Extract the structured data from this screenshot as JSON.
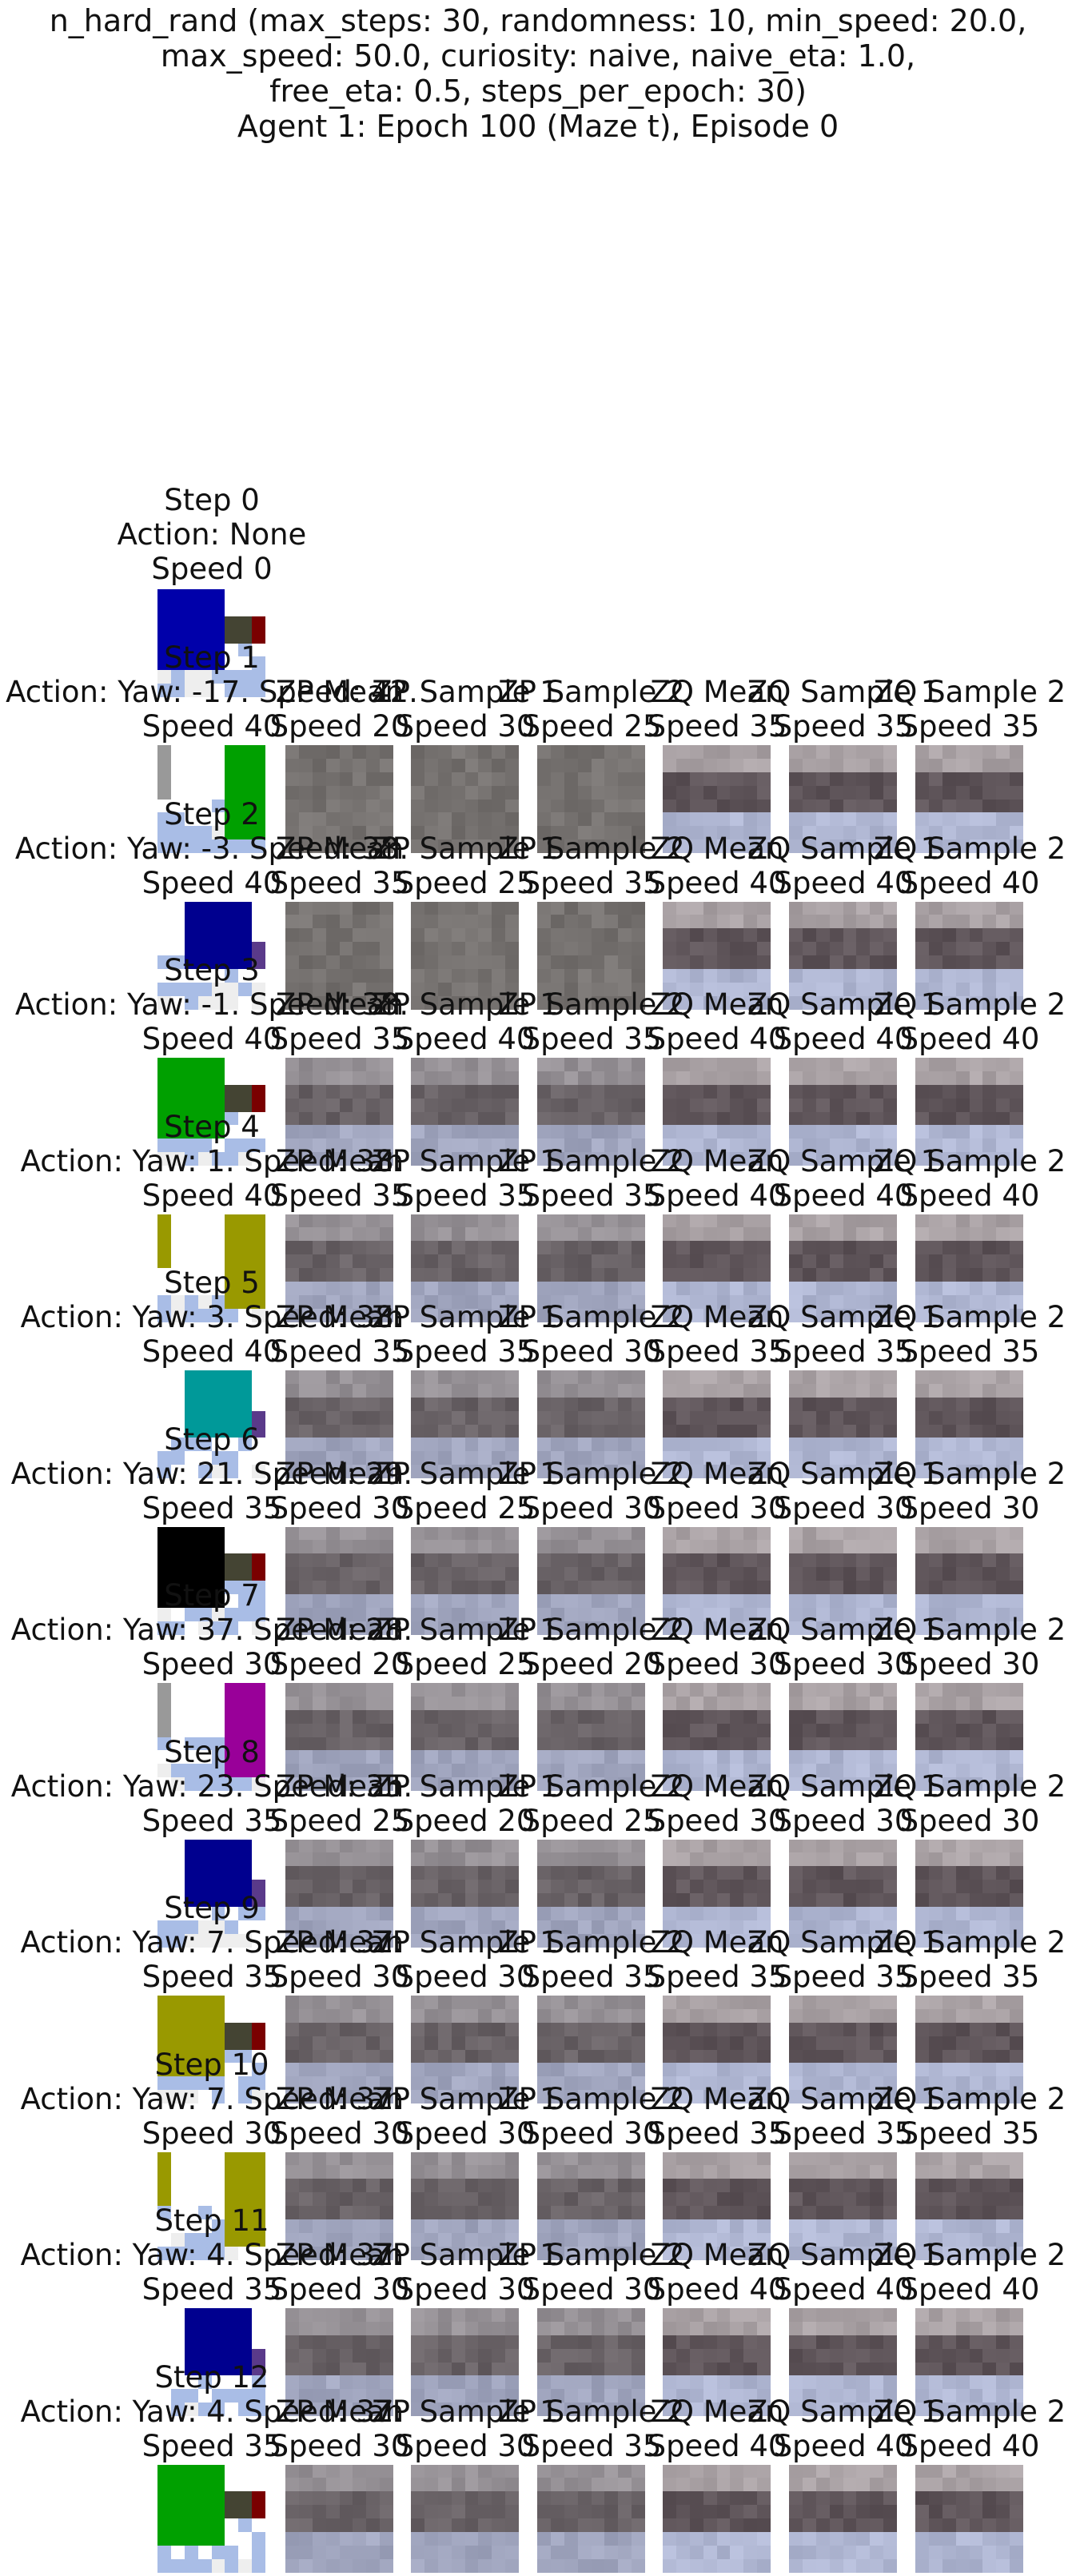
{
  "title": {
    "lines": [
      "n_hard_rand (max_steps: 30, randomness: 10, min_speed: 20.0,",
      "max_speed: 50.0, curiosity: naive, naive_eta: 1.0,",
      "free_eta: 0.5, steps_per_epoch: 30)",
      "Agent 1: Epoch 100 (Maze t), Episode 0"
    ]
  },
  "step0": {
    "lines": [
      "Step 0",
      "Action: None",
      "Speed 0"
    ],
    "color": "#0000aa"
  },
  "column_headers": [
    "ZP Mean",
    "ZP Sample 1",
    "ZP Sample 2",
    "ZQ Mean",
    "ZQ Sample 1",
    "ZQ Sample 2"
  ],
  "rows": [
    {
      "step": "Step 1",
      "action": "Action: Yaw: -17. Speed: 42.",
      "speed": "Speed 40",
      "color": "#00a000",
      "pred_speeds": [
        "Speed 20",
        "Speed 30",
        "Speed 25",
        "Speed 35",
        "Speed 35",
        "Speed 35"
      ]
    },
    {
      "step": "Step 2",
      "action": "Action: Yaw: -3. Speed: 38.",
      "speed": "Speed 40",
      "color": "#00008f",
      "pred_speeds": [
        "Speed 35",
        "Speed 25",
        "Speed 35",
        "Speed 40",
        "Speed 40",
        "Speed 40"
      ]
    },
    {
      "step": "Step 3",
      "action": "Action: Yaw: -1. Speed: 38.",
      "speed": "Speed 40",
      "color": "#00a000",
      "pred_speeds": [
        "Speed 35",
        "Speed 40",
        "Speed 35",
        "Speed 40",
        "Speed 40",
        "Speed 40"
      ]
    },
    {
      "step": "Step 4",
      "action": "Action: Yaw: 1. Speed: 38.",
      "speed": "Speed 40",
      "color": "#999900",
      "pred_speeds": [
        "Speed 35",
        "Speed 35",
        "Speed 35",
        "Speed 40",
        "Speed 40",
        "Speed 40"
      ]
    },
    {
      "step": "Step 5",
      "action": "Action: Yaw: 3. Speed: 38.",
      "speed": "Speed 40",
      "color": "#009999",
      "pred_speeds": [
        "Speed 35",
        "Speed 35",
        "Speed 30",
        "Speed 35",
        "Speed 35",
        "Speed 35"
      ]
    },
    {
      "step": "Step 6",
      "action": "Action: Yaw: 21. Speed: 29.",
      "speed": "Speed 35",
      "color": "#000000",
      "pred_speeds": [
        "Speed 30",
        "Speed 25",
        "Speed 30",
        "Speed 30",
        "Speed 30",
        "Speed 30"
      ]
    },
    {
      "step": "Step 7",
      "action": "Action: Yaw: 37. Speed: 28.",
      "speed": "Speed 30",
      "color": "#990099",
      "pred_speeds": [
        "Speed 20",
        "Speed 25",
        "Speed 20",
        "Speed 30",
        "Speed 30",
        "Speed 30"
      ]
    },
    {
      "step": "Step 8",
      "action": "Action: Yaw: 23. Speed: 35.",
      "speed": "Speed 35",
      "color": "#00008f",
      "pred_speeds": [
        "Speed 25",
        "Speed 20",
        "Speed 25",
        "Speed 30",
        "Speed 30",
        "Speed 30"
      ]
    },
    {
      "step": "Step 9",
      "action": "Action: Yaw: 7. Speed: 37.",
      "speed": "Speed 35",
      "color": "#999900",
      "pred_speeds": [
        "Speed 30",
        "Speed 30",
        "Speed 35",
        "Speed 35",
        "Speed 35",
        "Speed 35"
      ]
    },
    {
      "step": "Step 10",
      "action": "Action: Yaw: 7. Speed: 37.",
      "speed": "Speed 30",
      "color": "#999900",
      "pred_speeds": [
        "Speed 30",
        "Speed 30",
        "Speed 30",
        "Speed 35",
        "Speed 35",
        "Speed 35"
      ]
    },
    {
      "step": "Step 11",
      "action": "Action: Yaw: 4. Speed: 37.",
      "speed": "Speed 35",
      "color": "#00008f",
      "pred_speeds": [
        "Speed 30",
        "Speed 30",
        "Speed 30",
        "Speed 40",
        "Speed 40",
        "Speed 40"
      ]
    },
    {
      "step": "Step 12",
      "action": "Action: Yaw: 4. Speed: 37.",
      "speed": "Speed 35",
      "color": "#00a000",
      "pred_speeds": [
        "Speed 30",
        "Speed 30",
        "Speed 35",
        "Speed 40",
        "Speed 40",
        "Speed 40"
      ]
    }
  ]
}
